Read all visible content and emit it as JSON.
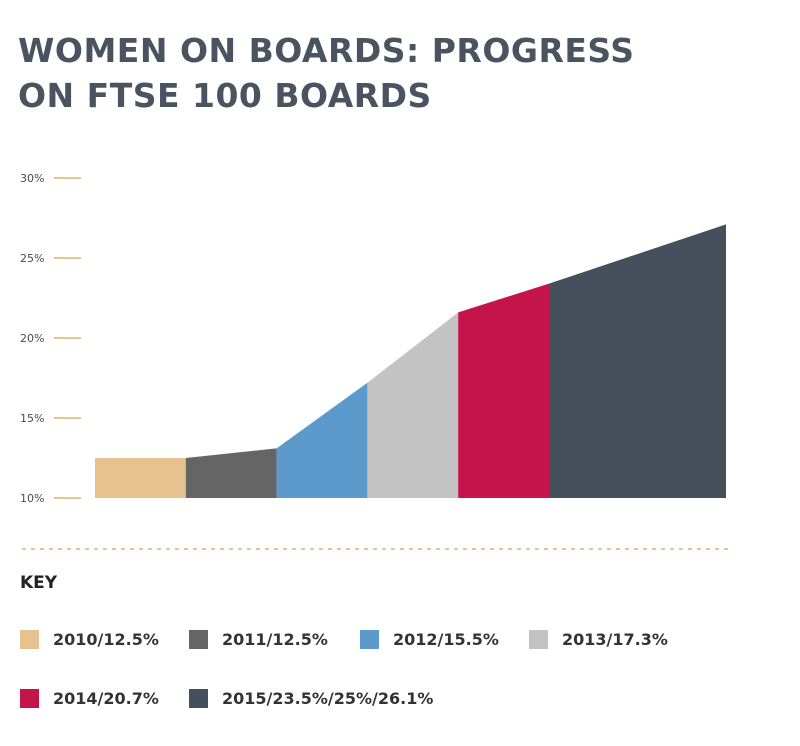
{
  "title": [
    "WOMEN ON BOARDS: PROGRESS",
    "ON FTSE 100 BOARDS"
  ],
  "key_title": "KEY",
  "colors": {
    "axis_tick": "#e6c58f",
    "divider": "#e6c58f",
    "tick_label": "#444c56"
  },
  "chart_data": {
    "type": "area",
    "title": "WOMEN ON BOARDS: PROGRESS ON FTSE 100 BOARDS",
    "ylim": [
      10,
      30
    ],
    "y_ticks": [
      "10%",
      "15%",
      "20%",
      "25%",
      "30%"
    ],
    "y_tick_values": [
      10,
      15,
      20,
      25,
      30
    ],
    "grid": false,
    "legend_placement": "bottom",
    "series": [
      {
        "name": "2010/12.5%",
        "color": "#e7c28e",
        "start": 12.5,
        "end": 12.5
      },
      {
        "name": "2011/12.5%",
        "color": "#656565",
        "start": 12.5,
        "end": 13.1
      },
      {
        "name": "2012/15.5%",
        "color": "#5b9acb",
        "start": 13.1,
        "end": 17.2
      },
      {
        "name": "2013/17.3%",
        "color": "#c3c3c3",
        "start": 17.2,
        "end": 21.6
      },
      {
        "name": "2014/20.7%",
        "color": "#c5144b",
        "start": 21.6,
        "end": 23.4
      },
      {
        "name": "2015/23.5%/25%/26.1%",
        "color": "#46505c",
        "start": 23.4,
        "end": 27.1
      }
    ]
  },
  "legend": [
    {
      "label": "2010/12.5%",
      "color": "#e7c28e"
    },
    {
      "label": "2011/12.5%",
      "color": "#656565"
    },
    {
      "label": "2012/15.5%",
      "color": "#5b9acb"
    },
    {
      "label": "2013/17.3%",
      "color": "#c3c3c3"
    },
    {
      "label": "2014/20.7%",
      "color": "#c5144b"
    },
    {
      "label": "2015/23.5%/25%/26.1%",
      "color": "#46505c"
    }
  ]
}
